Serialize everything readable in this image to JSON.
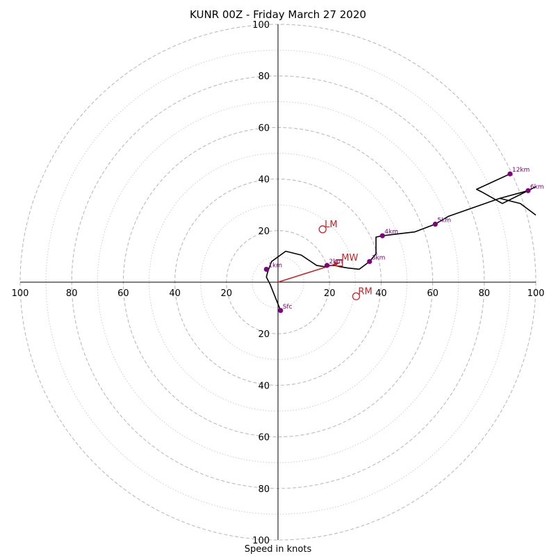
{
  "chart_data": {
    "type": "hodograph",
    "title": "KUNR 00Z - Friday March 27 2020",
    "xlabel": "Speed in knots",
    "range_max": 100,
    "ring_labels": [
      "20",
      "40",
      "60",
      "80",
      "100"
    ],
    "major_rings": [
      20,
      40,
      60,
      80,
      100
    ],
    "minor_rings": [
      10,
      30,
      50,
      70,
      90
    ],
    "colors": {
      "grid": "#bbbbbb",
      "profile": "#000000",
      "markers": "#800080",
      "motion": "#cc2222",
      "axes": "#000000"
    },
    "profile": [
      [
        1,
        -11
      ],
      [
        -3,
        -1
      ],
      [
        -4.5,
        2
      ],
      [
        -4,
        4
      ],
      [
        -2.5,
        8
      ],
      [
        3,
        12
      ],
      [
        9,
        10.5
      ],
      [
        15,
        6.5
      ],
      [
        18,
        6
      ],
      [
        19,
        6.5
      ],
      [
        22,
        6.5
      ],
      [
        24,
        6
      ],
      [
        27,
        5.5
      ],
      [
        31.5,
        5
      ],
      [
        35.5,
        8
      ],
      [
        38,
        11
      ],
      [
        38,
        14
      ],
      [
        38,
        17.5
      ],
      [
        40.5,
        18
      ],
      [
        53,
        19.5
      ],
      [
        61,
        22.5
      ],
      [
        66,
        25.5
      ],
      [
        76,
        29
      ],
      [
        86,
        32.5
      ],
      [
        97,
        35.5
      ],
      [
        100,
        37
      ],
      [
        87,
        30.5
      ],
      [
        79,
        35
      ],
      [
        77,
        36
      ],
      [
        90,
        42
      ]
    ],
    "profile_tail": [
      [
        86,
        32.5
      ],
      [
        94,
        30.5
      ],
      [
        100,
        26
      ]
    ],
    "markers": [
      {
        "label": "Sfc",
        "u": 1,
        "v": -11
      },
      {
        "label": "1km",
        "u": -4.5,
        "v": 5
      },
      {
        "label": "2km",
        "u": 19,
        "v": 6.5
      },
      {
        "label": "3km",
        "u": 35.5,
        "v": 8
      },
      {
        "label": "4km",
        "u": 40.5,
        "v": 18
      },
      {
        "label": "5km",
        "u": 61,
        "v": 22.5
      },
      {
        "label": "6km",
        "u": 97,
        "v": 35.5
      },
      {
        "label": "12km",
        "u": 90,
        "v": 42
      }
    ],
    "storm_motion": [
      {
        "label": "LM",
        "u": 17.3,
        "v": 20.5,
        "symbol": "circle"
      },
      {
        "label": "RM",
        "u": 30.3,
        "v": -5.5,
        "symbol": "circle"
      },
      {
        "label": "MW",
        "u": 23.8,
        "v": 7.5,
        "symbol": "square"
      }
    ],
    "shear_vector": {
      "from": [
        0,
        0
      ],
      "to": [
        23.8,
        7.5
      ]
    }
  }
}
